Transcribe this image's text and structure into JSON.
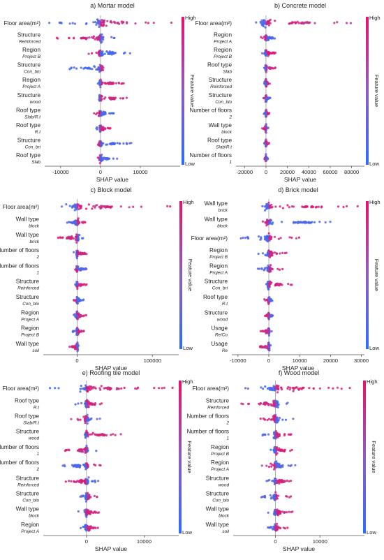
{
  "common": {
    "xlabel": "SHAP value",
    "colorbar_label": "Feature value",
    "high": "High",
    "low": "Low"
  },
  "colors": {
    "low": "#2f6bff",
    "mid": "#8c5dbf",
    "high": "#e8116a",
    "zero_line": "#9a9a9a"
  },
  "chart_data": [
    {
      "type": "scatter",
      "title": "a) Mortar model",
      "xlabel": "SHAP value",
      "xlim": [
        -14000,
        20000
      ],
      "xticks": [
        -10000,
        0,
        10000
      ],
      "features": [
        {
          "name": "Floor area(m²)",
          "sub": "",
          "min": -13500,
          "max": 19000,
          "bias": 1
        },
        {
          "name": "Structure",
          "sub": "Reinforced",
          "min": -11000,
          "max": 4000,
          "bias": -1
        },
        {
          "name": "Region",
          "sub": "Project B",
          "min": -4500,
          "max": 9000,
          "bias": -1
        },
        {
          "name": "Structure",
          "sub": "Con_blo",
          "min": -8000,
          "max": 3000,
          "bias": 1
        },
        {
          "name": "Region",
          "sub": "Project A",
          "min": -1000,
          "max": 6000,
          "bias": 1
        },
        {
          "name": "Structure",
          "sub": "wood",
          "min": -1500,
          "max": 7500,
          "bias": 1
        },
        {
          "name": "Roof type",
          "sub": "Slab/R.t",
          "min": -2000,
          "max": 3500,
          "bias": -1
        },
        {
          "name": "Roof type",
          "sub": "R.t",
          "min": -1500,
          "max": 2500,
          "bias": 1
        },
        {
          "name": "Structure",
          "sub": "Con_bri",
          "min": -1200,
          "max": 8000,
          "bias": -1
        },
        {
          "name": "Roof type",
          "sub": "Slab",
          "min": -1500,
          "max": 4500,
          "bias": -1
        }
      ]
    },
    {
      "type": "scatter",
      "title": "b) Concrete model",
      "xlabel": "SHAP value",
      "xlim": [
        -28000,
        92000
      ],
      "xticks": [
        -20000,
        0,
        20000,
        40000,
        60000,
        80000
      ],
      "features": [
        {
          "name": "Floor area(m²)",
          "sub": "",
          "min": -22000,
          "max": 85000,
          "bias": 1
        },
        {
          "name": "Region",
          "sub": "Project A",
          "min": -5000,
          "max": 10000,
          "bias": -1
        },
        {
          "name": "Region",
          "sub": "Project B",
          "min": -5000,
          "max": 10000,
          "bias": 1
        },
        {
          "name": "Roof type",
          "sub": "Slab",
          "min": -2000,
          "max": 10000,
          "bias": 1
        },
        {
          "name": "Structure",
          "sub": "Reinforced",
          "min": -2000,
          "max": 5000,
          "bias": 1
        },
        {
          "name": "Structure",
          "sub": "Con_blo",
          "min": -2500,
          "max": 4000,
          "bias": -1
        },
        {
          "name": "Number of floors",
          "sub": "2",
          "min": -2000,
          "max": 4000,
          "bias": 1
        },
        {
          "name": "Wall type",
          "sub": "block",
          "min": -4000,
          "max": 3000,
          "bias": -1
        },
        {
          "name": "Roof type",
          "sub": "Slab/R.t",
          "min": -2000,
          "max": 3000,
          "bias": 1
        },
        {
          "name": "Number of floors",
          "sub": "1",
          "min": -1500,
          "max": 2000,
          "bias": -1
        }
      ]
    },
    {
      "type": "scatter",
      "title": "c) Block model",
      "xlabel": "SHAP value",
      "xlim": [
        -45000,
        135000
      ],
      "xticks": [
        0,
        100000
      ],
      "features": [
        {
          "name": "Floor area(m²)",
          "sub": "",
          "min": -40000,
          "max": 125000,
          "bias": 1
        },
        {
          "name": "Wall type",
          "sub": "block",
          "min": -15000,
          "max": 12000,
          "bias": 1
        },
        {
          "name": "Wall type",
          "sub": "brick",
          "min": -30000,
          "max": 10000,
          "bias": -1
        },
        {
          "name": "Number of floors",
          "sub": "2",
          "min": -5000,
          "max": 15000,
          "bias": 1
        },
        {
          "name": "Number of floors",
          "sub": "1",
          "min": -5000,
          "max": 15000,
          "bias": -1
        },
        {
          "name": "Structure",
          "sub": "Reinforced",
          "min": -4000,
          "max": 14000,
          "bias": 1
        },
        {
          "name": "Structure",
          "sub": "Con_blo",
          "min": -5000,
          "max": 10000,
          "bias": -1
        },
        {
          "name": "Region",
          "sub": "Project A",
          "min": -6000,
          "max": 12000,
          "bias": 1
        },
        {
          "name": "Region",
          "sub": "Project B",
          "min": -6000,
          "max": 10000,
          "bias": 1
        },
        {
          "name": "Wall type",
          "sub": "soil",
          "min": -15000,
          "max": 5000,
          "bias": -1
        }
      ]
    },
    {
      "type": "scatter",
      "title": "d) Brick model",
      "xlabel": "SHAP value",
      "xlim": [
        -12000,
        31000
      ],
      "xticks": [
        -10000,
        0,
        10000,
        20000,
        30000
      ],
      "features": [
        {
          "name": "Wall type",
          "sub": "brick",
          "min": -4000,
          "max": 29000,
          "bias": 1
        },
        {
          "name": "Wall type",
          "sub": "block",
          "min": -4000,
          "max": 26000,
          "bias": -1
        },
        {
          "name": "Floor area(m²)",
          "sub": "",
          "min": -10000,
          "max": 10000,
          "bias": 1
        },
        {
          "name": "Region",
          "sub": "Project B",
          "min": -4000,
          "max": 6000,
          "bias": 1
        },
        {
          "name": "Region",
          "sub": "Project A",
          "min": -5000,
          "max": 5000,
          "bias": 1
        },
        {
          "name": "Structure",
          "sub": "Con_bri",
          "min": -2000,
          "max": 8000,
          "bias": 1
        },
        {
          "name": "Roof type",
          "sub": "R.t",
          "min": -1500,
          "max": 1500,
          "bias": -1
        },
        {
          "name": "Structure",
          "sub": "wood",
          "min": -1500,
          "max": 1500,
          "bias": -1
        },
        {
          "name": "Usage",
          "sub": "Re/Co",
          "min": -3000,
          "max": 1500,
          "bias": -1
        },
        {
          "name": "Usage",
          "sub": "Re",
          "min": -3000,
          "max": 1000,
          "bias": -1
        }
      ]
    },
    {
      "type": "scatter",
      "title": "e) Roofing tile model",
      "xlabel": "SHAP value",
      "xlim": [
        -7500,
        16000
      ],
      "xticks": [
        0,
        10000
      ],
      "features": [
        {
          "name": "Floor area(m²)",
          "sub": "",
          "min": -7000,
          "max": 15000,
          "bias": 1
        },
        {
          "name": "Roof type",
          "sub": "R.t",
          "min": -2000,
          "max": 3500,
          "bias": 1
        },
        {
          "name": "Roof type",
          "sub": "Slab/R.t",
          "min": -3000,
          "max": 3000,
          "bias": -1
        },
        {
          "name": "Structure",
          "sub": "wood",
          "min": -1000,
          "max": 6000,
          "bias": 1
        },
        {
          "name": "Number of floors",
          "sub": "1",
          "min": -4000,
          "max": 2000,
          "bias": -1
        },
        {
          "name": "Number of floors",
          "sub": "2",
          "min": -5000,
          "max": 2500,
          "bias": 1
        },
        {
          "name": "Structure",
          "sub": "Reinforced",
          "min": -4000,
          "max": 2500,
          "bias": -1
        },
        {
          "name": "Structure",
          "sub": "Con_blo",
          "min": -1500,
          "max": 2000,
          "bias": 1
        },
        {
          "name": "Wall type",
          "sub": "block",
          "min": -1500,
          "max": 2500,
          "bias": 1
        },
        {
          "name": "Region",
          "sub": "Project A",
          "min": -1500,
          "max": 2500,
          "bias": 1
        }
      ]
    },
    {
      "type": "scatter",
      "title": "f) Wood model",
      "xlabel": "SHAP value",
      "xlim": [
        -9500,
        20000
      ],
      "xticks": [
        0,
        10000
      ],
      "features": [
        {
          "name": "Floor area(m²)",
          "sub": "",
          "min": -9000,
          "max": 19000,
          "bias": 1
        },
        {
          "name": "Structure",
          "sub": "Reinforced",
          "min": -8000,
          "max": 4000,
          "bias": -1
        },
        {
          "name": "Number of floors",
          "sub": "2",
          "min": -4000,
          "max": 4000,
          "bias": -1
        },
        {
          "name": "Number of floors",
          "sub": "1",
          "min": -3000,
          "max": 4000,
          "bias": 1
        },
        {
          "name": "Region",
          "sub": "Project B",
          "min": -3000,
          "max": 5000,
          "bias": 1
        },
        {
          "name": "Region",
          "sub": "Project A",
          "min": -3500,
          "max": 4500,
          "bias": -1
        },
        {
          "name": "Structure",
          "sub": "wood",
          "min": -2500,
          "max": 5000,
          "bias": 1
        },
        {
          "name": "Structure",
          "sub": "Con_blo",
          "min": -3500,
          "max": 3500,
          "bias": 1
        },
        {
          "name": "Wall type",
          "sub": "block",
          "min": -2000,
          "max": 4000,
          "bias": 1
        },
        {
          "name": "Wall type",
          "sub": "soil",
          "min": -2500,
          "max": 3000,
          "bias": 1
        }
      ]
    }
  ]
}
